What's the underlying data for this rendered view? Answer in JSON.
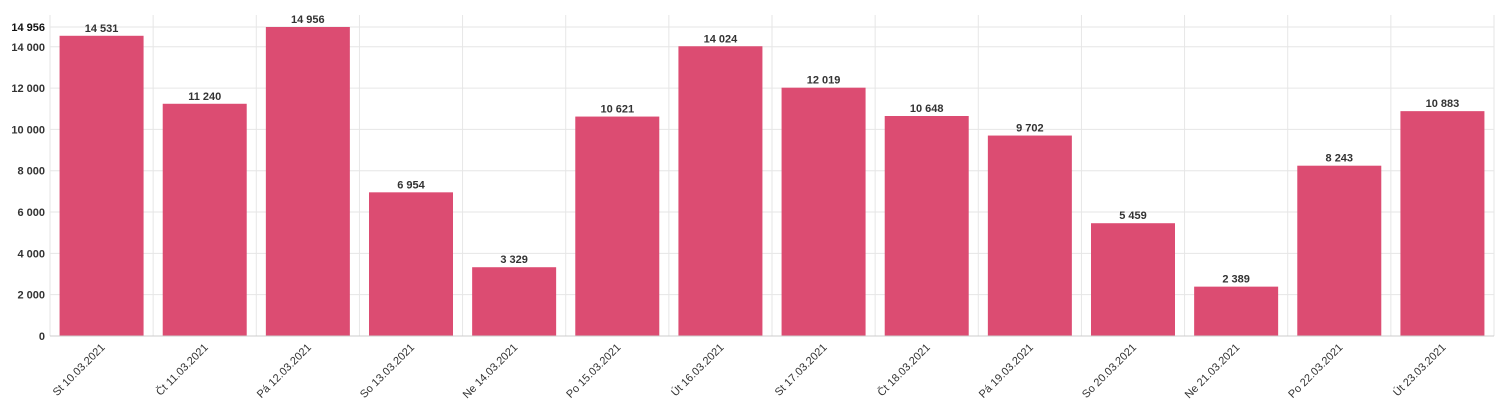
{
  "chart_data": {
    "type": "bar",
    "categories": [
      "St 10.03.2021",
      "Čt 11.03.2021",
      "Pá 12.03.2021",
      "So 13.03.2021",
      "Ne 14.03.2021",
      "Po 15.03.2021",
      "Út 16.03.2021",
      "St 17.03.2021",
      "Čt 18.03.2021",
      "Pá 19.03.2021",
      "So 20.03.2021",
      "Ne 21.03.2021",
      "Po 22.03.2021",
      "Út 23.03.2021"
    ],
    "values": [
      14531,
      11240,
      14956,
      6954,
      3329,
      10621,
      14024,
      12019,
      10648,
      9702,
      5459,
      2389,
      8243,
      10883
    ],
    "value_labels": [
      "14 531",
      "11 240",
      "14 956",
      "6 954",
      "3 329",
      "10 621",
      "14 024",
      "12 019",
      "10 648",
      "9 702",
      "5 459",
      "2 389",
      "8 243",
      "10 883"
    ],
    "yticks": [
      0,
      2000,
      4000,
      6000,
      8000,
      10000,
      12000,
      14000
    ],
    "ytick_labels": [
      "0",
      "2 000",
      "4 000",
      "6 000",
      "8 000",
      "10 000",
      "12 000",
      "14 000"
    ],
    "ymax_label": "14 956",
    "ylim": [
      0,
      14956
    ],
    "grid": true,
    "bar_color": "#dc4c72",
    "title": "",
    "xlabel": "",
    "ylabel": ""
  }
}
